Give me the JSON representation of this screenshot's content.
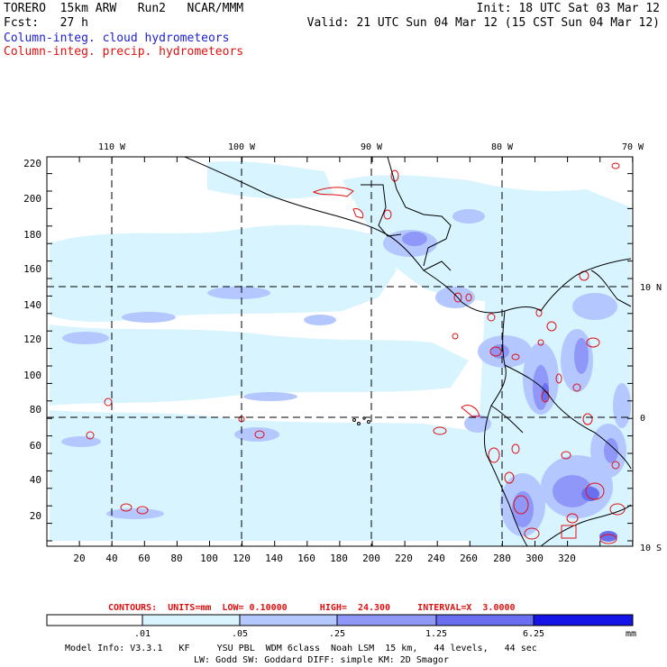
{
  "header": {
    "model": "TORERO  15km ARW   Run2   NCAR/MMM",
    "forecast": "Fcst:   27 h",
    "init": "Init: 18 UTC Sat 03 Mar 12",
    "valid": "Valid: 21 UTC Sun 04 Mar 12 (15 CST Sun 04 Mar 12)",
    "field_cloud": "Column-integ. cloud hydrometeors",
    "field_precip": "Column-integ. precip. hydrometeors"
  },
  "colors": {
    "cloud_text": "#2020d0",
    "precip_text": "#e01010",
    "shade_1": "#d8f4ff",
    "shade_2": "#b4c8ff",
    "shade_3": "#8f98f8",
    "shade_4": "#6a6ef0",
    "shade_5": "#1414e6",
    "contour": "#e01010"
  },
  "map": {
    "lon_labels": [
      "110 W",
      "100 W",
      "90 W",
      "80 W",
      "70 W"
    ],
    "lat_labels": [
      "10 N",
      "0",
      "10 S"
    ],
    "x_ticks": [
      "20",
      "40",
      "60",
      "80",
      "100",
      "120",
      "140",
      "160",
      "180",
      "200",
      "220",
      "240",
      "260",
      "280",
      "300",
      "320"
    ],
    "y_ticks": [
      "220",
      "200",
      "180",
      "160",
      "140",
      "120",
      "100",
      "80",
      "60",
      "40",
      "20"
    ]
  },
  "contours_line": "CONTOURS:  UNITS=mm  LOW= 0.10000      HIGH=  24.300     INTERVAL=X  3.0000",
  "legend": {
    "labels": [
      ".01",
      ".05",
      ".25",
      "1.25",
      "6.25"
    ],
    "units": "mm"
  },
  "footer": {
    "line1": "Model Info: V3.3.1   KF     YSU PBL  WDM 6class  Noah LSM  15 km,   44 levels,   44 sec",
    "line2": "LW: Godd SW: Goddard DIFF: simple KM: 2D Smagor"
  }
}
